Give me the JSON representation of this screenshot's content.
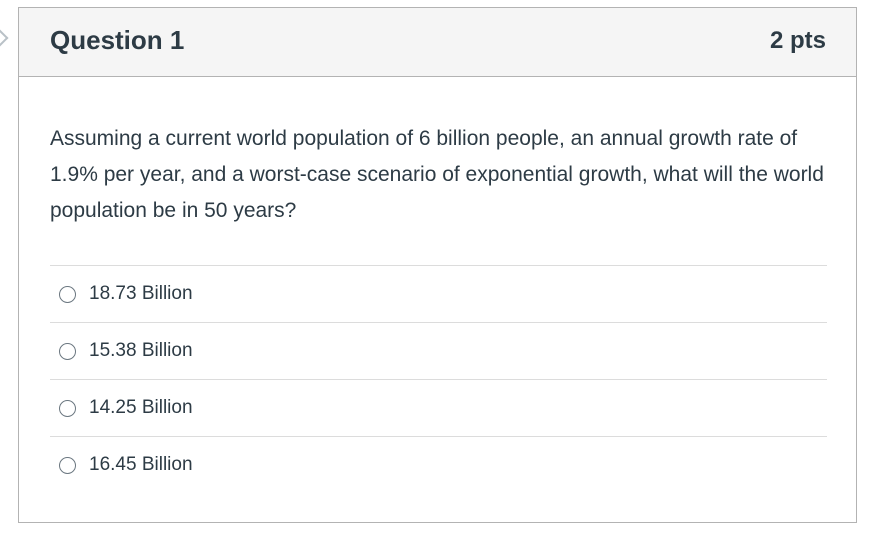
{
  "question": {
    "title": "Question 1",
    "points": "2 pts",
    "text": "Assuming a current world population of 6 billion people, an annual growth rate of 1.9% per year, and a worst-case scenario of exponential growth, what will the world population be in 50 years?",
    "answers": [
      {
        "label": "18.73 Billion"
      },
      {
        "label": "15.38 Billion"
      },
      {
        "label": "14.25 Billion"
      },
      {
        "label": "16.45 Billion"
      }
    ]
  }
}
